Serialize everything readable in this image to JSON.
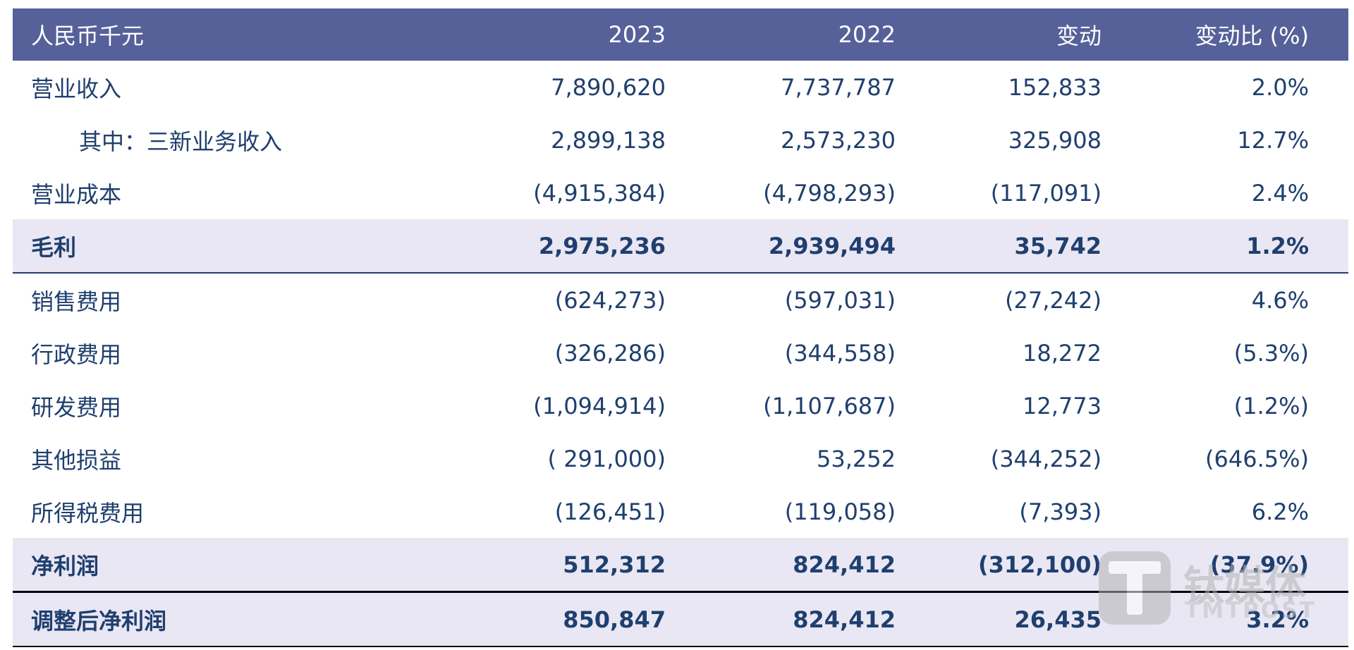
{
  "table": {
    "header": {
      "label": "人民币千元",
      "y2023": "2023",
      "y2022": "2022",
      "change": "变动",
      "change_pct": "变动比 (%)"
    },
    "rows": [
      {
        "label": "营业收入",
        "y2023": "7,890,620",
        "y2022": "7,737,787",
        "change": "152,833",
        "change_pct": "2.0%"
      },
      {
        "label": "其中：三新业务收入",
        "y2023": "2,899,138",
        "y2022": "2,573,230",
        "change": "325,908",
        "change_pct": "12.7%"
      },
      {
        "label": "营业成本",
        "y2023": "(4,915,384)",
        "y2022": "(4,798,293)",
        "change": "(117,091)",
        "change_pct": "2.4%"
      },
      {
        "label": "毛利",
        "y2023": "2,975,236",
        "y2022": "2,939,494",
        "change": "35,742",
        "change_pct": "1.2%"
      },
      {
        "label": "销售费用",
        "y2023": "(624,273)",
        "y2022": "(597,031)",
        "change": "(27,242)",
        "change_pct": "4.6%"
      },
      {
        "label": "行政费用",
        "y2023": "(326,286)",
        "y2022": "(344,558)",
        "change": "18,272",
        "change_pct": "(5.3%)"
      },
      {
        "label": "研发费用",
        "y2023": "(1,094,914)",
        "y2022": "(1,107,687)",
        "change": "12,773",
        "change_pct": "(1.2%)"
      },
      {
        "label": "其他损益",
        "y2023": "( 291,000)",
        "y2022": "53,252",
        "change": "(344,252)",
        "change_pct": "(646.5%)"
      },
      {
        "label": "所得税费用",
        "y2023": "(126,451)",
        "y2022": "(119,058)",
        "change": "(7,393)",
        "change_pct": "6.2%"
      },
      {
        "label": "净利润",
        "y2023": "512,312",
        "y2022": "824,412",
        "change": "(312,100)",
        "change_pct": "(37.9%)"
      },
      {
        "label": "调整后净利润",
        "y2023": "850,847",
        "y2022": "824,412",
        "change": "26,435",
        "change_pct": "3.2%"
      }
    ]
  },
  "watermark": {
    "icon": "tmtpost-logo-icon",
    "brand": "钛媒体",
    "sub": "TMTPOST"
  },
  "colors": {
    "header_bg": "#566099",
    "header_text": "#ffffff",
    "body_text": "#1f3f6e",
    "highlight_bg": "#e9e7f4"
  }
}
